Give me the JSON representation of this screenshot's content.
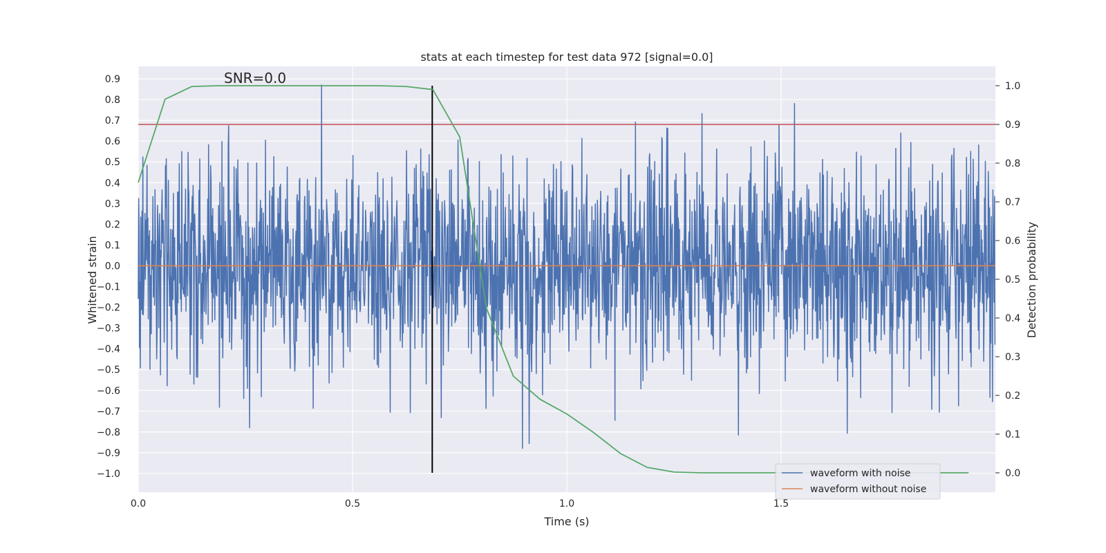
{
  "chart_data": {
    "type": "line",
    "title": "stats at each timestep for test data 972 [signal=0.0]",
    "xlabel": "Time (s)",
    "ylabel": "Whitened strain",
    "ylabel_right": "Detection probability",
    "xlim": [
      0.0,
      2.0
    ],
    "ylim": [
      -1.09,
      0.96
    ],
    "ylim_right": [
      -0.05,
      1.05
    ],
    "x_ticks": [
      "0.0",
      "0.5",
      "1.0",
      "1.5"
    ],
    "x_tick_values": [
      0.0,
      0.5,
      1.0,
      1.5
    ],
    "y_ticks": [
      "0.9",
      "0.8",
      "0.7",
      "0.6",
      "0.5",
      "0.4",
      "0.3",
      "0.2",
      "0.1",
      "0.0",
      "−0.1",
      "−0.2",
      "−0.3",
      "−0.4",
      "−0.5",
      "−0.6",
      "−0.7",
      "−0.8",
      "−0.9",
      "−1.0"
    ],
    "y_tick_values": [
      0.9,
      0.8,
      0.7,
      0.6,
      0.5,
      0.4,
      0.3,
      0.2,
      0.1,
      0.0,
      -0.1,
      -0.2,
      -0.3,
      -0.4,
      -0.5,
      -0.6,
      -0.7,
      -0.8,
      -0.9,
      -1.0
    ],
    "y2_ticks": [
      "1.0",
      "0.9",
      "0.8",
      "0.7",
      "0.6",
      "0.5",
      "0.4",
      "0.3",
      "0.2",
      "0.1",
      "0.0"
    ],
    "y2_tick_values": [
      1.0,
      0.9,
      0.8,
      0.7,
      0.6,
      0.5,
      0.4,
      0.3,
      0.2,
      0.1,
      0.0
    ],
    "annotation": "SNR=0.0",
    "annotation_at": [
      0.2,
      0.88
    ],
    "vertical_line_x": 0.686,
    "threshold_probability": 0.9,
    "series": [
      {
        "name": "waveform with noise",
        "color": "#4c72b0",
        "description": "whitened strain noise, amplitude roughly between -1.0 and 0.87",
        "n_points": 2048,
        "t_end": 2.0
      },
      {
        "name": "waveform without noise",
        "color": "#dd8452",
        "x": [
          0.0,
          2.0
        ],
        "values": [
          0.0,
          0.0
        ]
      },
      {
        "name": "detection probability",
        "axis": "right",
        "color": "#55a868",
        "x": [
          0.0,
          0.0625,
          0.125,
          0.1875,
          0.25,
          0.3125,
          0.375,
          0.4375,
          0.5,
          0.5625,
          0.625,
          0.6875,
          0.75,
          0.8125,
          0.875,
          0.9375,
          1.0,
          1.0625,
          1.125,
          1.1875,
          1.25,
          1.3125,
          1.375,
          1.4375,
          1.5,
          1.5625,
          1.625,
          1.6875,
          1.75,
          1.8125,
          1.875,
          1.9375
        ],
        "values": [
          0.75,
          0.965,
          0.998,
          1.0,
          1.0,
          1.0,
          1.0,
          1.0,
          1.0,
          1.0,
          0.998,
          0.99,
          0.868,
          0.425,
          0.25,
          0.19,
          0.152,
          0.104,
          0.05,
          0.014,
          0.002,
          0.0,
          0.0,
          0.0,
          0.0,
          0.0,
          0.0,
          0.0,
          0.0,
          0.0,
          0.0,
          0.0
        ]
      },
      {
        "name": "threshold",
        "axis": "right",
        "color": "#c44e52",
        "x": [
          0.0,
          2.0
        ],
        "values": [
          0.9,
          0.9
        ]
      }
    ],
    "legend": {
      "position": "lower-right",
      "entries": [
        {
          "label": "waveform with noise",
          "color": "#4c72b0"
        },
        {
          "label": "waveform without noise",
          "color": "#dd8452"
        }
      ]
    }
  }
}
